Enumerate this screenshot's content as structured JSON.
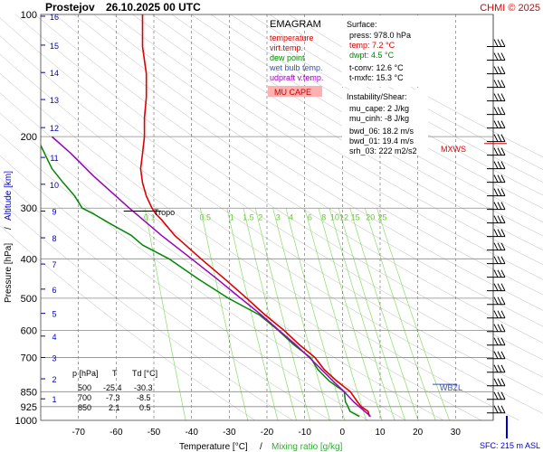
{
  "header": {
    "station": "Prostejov",
    "datetime": "26.10.2025 00 UTC",
    "credit": "CHMI © 2025"
  },
  "colors": {
    "temperature": "#dd0000",
    "dew_point": "#008800",
    "virt_temp": "#cc0000",
    "wet_bulb": "#3355cc",
    "updraft": "#9900bb",
    "isotherm": "#444444",
    "isobar": "#888888",
    "mixing_ratio": "#88dd66",
    "dry_adiabat": "#bbbbbb",
    "altitude": "#0000cc",
    "mu_cape_fill": "#ffb0b0"
  },
  "legend": {
    "title": "EMAGRAM",
    "items": [
      {
        "label": "temperature",
        "color": "#dd0000"
      },
      {
        "label": "virt.temp.",
        "color": "#dd0000"
      },
      {
        "label": "dew point",
        "color": "#008800"
      },
      {
        "label": "wet bulb temp.",
        "color": "#3355cc"
      },
      {
        "label": "udpraft v.temp.",
        "color": "#9900bb"
      }
    ],
    "mu_cape_label": "MU CAPE"
  },
  "surface_panel": {
    "title": "Surface:",
    "rows": [
      {
        "text": "press: 978.0 hPa",
        "color": "#000000"
      },
      {
        "text": "temp: 7.2 °C",
        "color": "#dd0000"
      },
      {
        "text": "dwpt: 4.5 °C",
        "color": "#008800"
      }
    ],
    "tconv": "t-conv: 12.6 °C",
    "tmxfc": "t-mxfc: 15.3 °C"
  },
  "instability_panel": {
    "title": "Instability/Shear:",
    "rows": [
      "mu_cape: 2 J/kg",
      "mu_cinh: -8 J/kg",
      "",
      "bwd_06: 18.2 m/s",
      "bwd_01: 19.4 m/s",
      "srh_03: 222 m2/s2"
    ]
  },
  "table": {
    "headers": [
      "p [hPa]",
      "T",
      "Td [°C]"
    ],
    "rows": [
      [
        "500",
        "-25.4",
        "-30.3"
      ],
      [
        "700",
        "-7.3",
        "-8.5"
      ],
      [
        "850",
        "2.1",
        "0.5"
      ]
    ]
  },
  "markers": {
    "tropo": "Tropo",
    "mxws": "MXWS",
    "wbzl": "WBZL",
    "sfc": "SFC: 215 m ASL"
  },
  "chart_data": {
    "type": "line",
    "xlabel": "Temperature [°C]",
    "xlabel_mixing": "Mixing ratio [g/kg]",
    "ylabel": "Pressure [hPa]",
    "ylabel_alt": "Altitude [km]",
    "xlim": [
      -80,
      40
    ],
    "ylim": [
      1000,
      100
    ],
    "y_scale": "log",
    "x_ticks": [
      -70,
      -60,
      -50,
      -40,
      -30,
      -20,
      -10,
      0,
      10,
      20,
      30
    ],
    "pressure_ticks": [
      100,
      200,
      300,
      400,
      500,
      600,
      700,
      850,
      925,
      1000
    ],
    "altitude_ticks": [
      {
        "km": 1,
        "p": 885
      },
      {
        "km": 2,
        "p": 790
      },
      {
        "km": 3,
        "p": 700
      },
      {
        "km": 4,
        "p": 620
      },
      {
        "km": 5,
        "p": 545
      },
      {
        "km": 6,
        "p": 475
      },
      {
        "km": 7,
        "p": 412
      },
      {
        "km": 8,
        "p": 355
      },
      {
        "km": 9,
        "p": 305
      },
      {
        "km": 10,
        "p": 262
      },
      {
        "km": 11,
        "p": 225
      },
      {
        "km": 12,
        "p": 190
      },
      {
        "km": 13,
        "p": 162
      },
      {
        "km": 14,
        "p": 139
      },
      {
        "km": 15,
        "p": 119
      },
      {
        "km": 16,
        "p": 101
      }
    ],
    "mixing_ratio_labels": [
      "0.1",
      "0.5",
      "1",
      "1.5",
      "2",
      "3",
      "4",
      "6",
      "8",
      "10",
      "12",
      "15",
      "20",
      "25"
    ],
    "mixing_ratio_values": [
      0.1,
      0.5,
      1,
      1.5,
      2,
      3,
      4,
      6,
      8,
      10,
      12,
      15,
      20,
      25
    ],
    "series": [
      {
        "name": "temperature",
        "color": "#dd0000",
        "points": [
          [
            978,
            7.2
          ],
          [
            950,
            6.8
          ],
          [
            925,
            5.0
          ],
          [
            900,
            4.0
          ],
          [
            850,
            2.1
          ],
          [
            800,
            -1.5
          ],
          [
            750,
            -4.8
          ],
          [
            700,
            -7.3
          ],
          [
            650,
            -11.5
          ],
          [
            600,
            -15.5
          ],
          [
            550,
            -20.5
          ],
          [
            500,
            -25.4
          ],
          [
            450,
            -31
          ],
          [
            400,
            -37.5
          ],
          [
            350,
            -44.5
          ],
          [
            320,
            -48
          ],
          [
            310,
            -49.5
          ],
          [
            300,
            -50.5
          ],
          [
            280,
            -52
          ],
          [
            260,
            -53
          ],
          [
            240,
            -53.5
          ],
          [
            220,
            -53
          ],
          [
            200,
            -52.5
          ],
          [
            180,
            -52.5
          ],
          [
            160,
            -52
          ],
          [
            140,
            -52
          ],
          [
            120,
            -53
          ],
          [
            100,
            -53
          ]
        ]
      },
      {
        "name": "dew point",
        "color": "#008800",
        "points": [
          [
            978,
            4.5
          ],
          [
            950,
            2.0
          ],
          [
            925,
            1.5
          ],
          [
            900,
            0.8
          ],
          [
            850,
            0.5
          ],
          [
            800,
            -3.5
          ],
          [
            750,
            -6.5
          ],
          [
            700,
            -8.5
          ],
          [
            650,
            -13
          ],
          [
            600,
            -17
          ],
          [
            550,
            -22
          ],
          [
            500,
            -30.3
          ],
          [
            450,
            -38
          ],
          [
            400,
            -46
          ],
          [
            370,
            -53
          ],
          [
            350,
            -56
          ],
          [
            330,
            -61
          ],
          [
            310,
            -66
          ],
          [
            300,
            -69
          ],
          [
            280,
            -71
          ],
          [
            260,
            -74
          ],
          [
            240,
            -77
          ],
          [
            220,
            -79
          ],
          [
            210,
            -80
          ]
        ]
      },
      {
        "name": "udpraft v.temp.",
        "color": "#9900bb",
        "points": [
          [
            978,
            7.5
          ],
          [
            900,
            3.0
          ],
          [
            850,
            0.5
          ],
          [
            800,
            -2.5
          ],
          [
            750,
            -5.5
          ],
          [
            700,
            -8.8
          ],
          [
            650,
            -12.5
          ],
          [
            600,
            -16.8
          ],
          [
            550,
            -21.5
          ],
          [
            500,
            -27
          ],
          [
            450,
            -33
          ],
          [
            400,
            -40
          ],
          [
            350,
            -48
          ],
          [
            300,
            -56.5
          ],
          [
            250,
            -66
          ],
          [
            220,
            -72
          ],
          [
            200,
            -77
          ]
        ]
      }
    ]
  }
}
